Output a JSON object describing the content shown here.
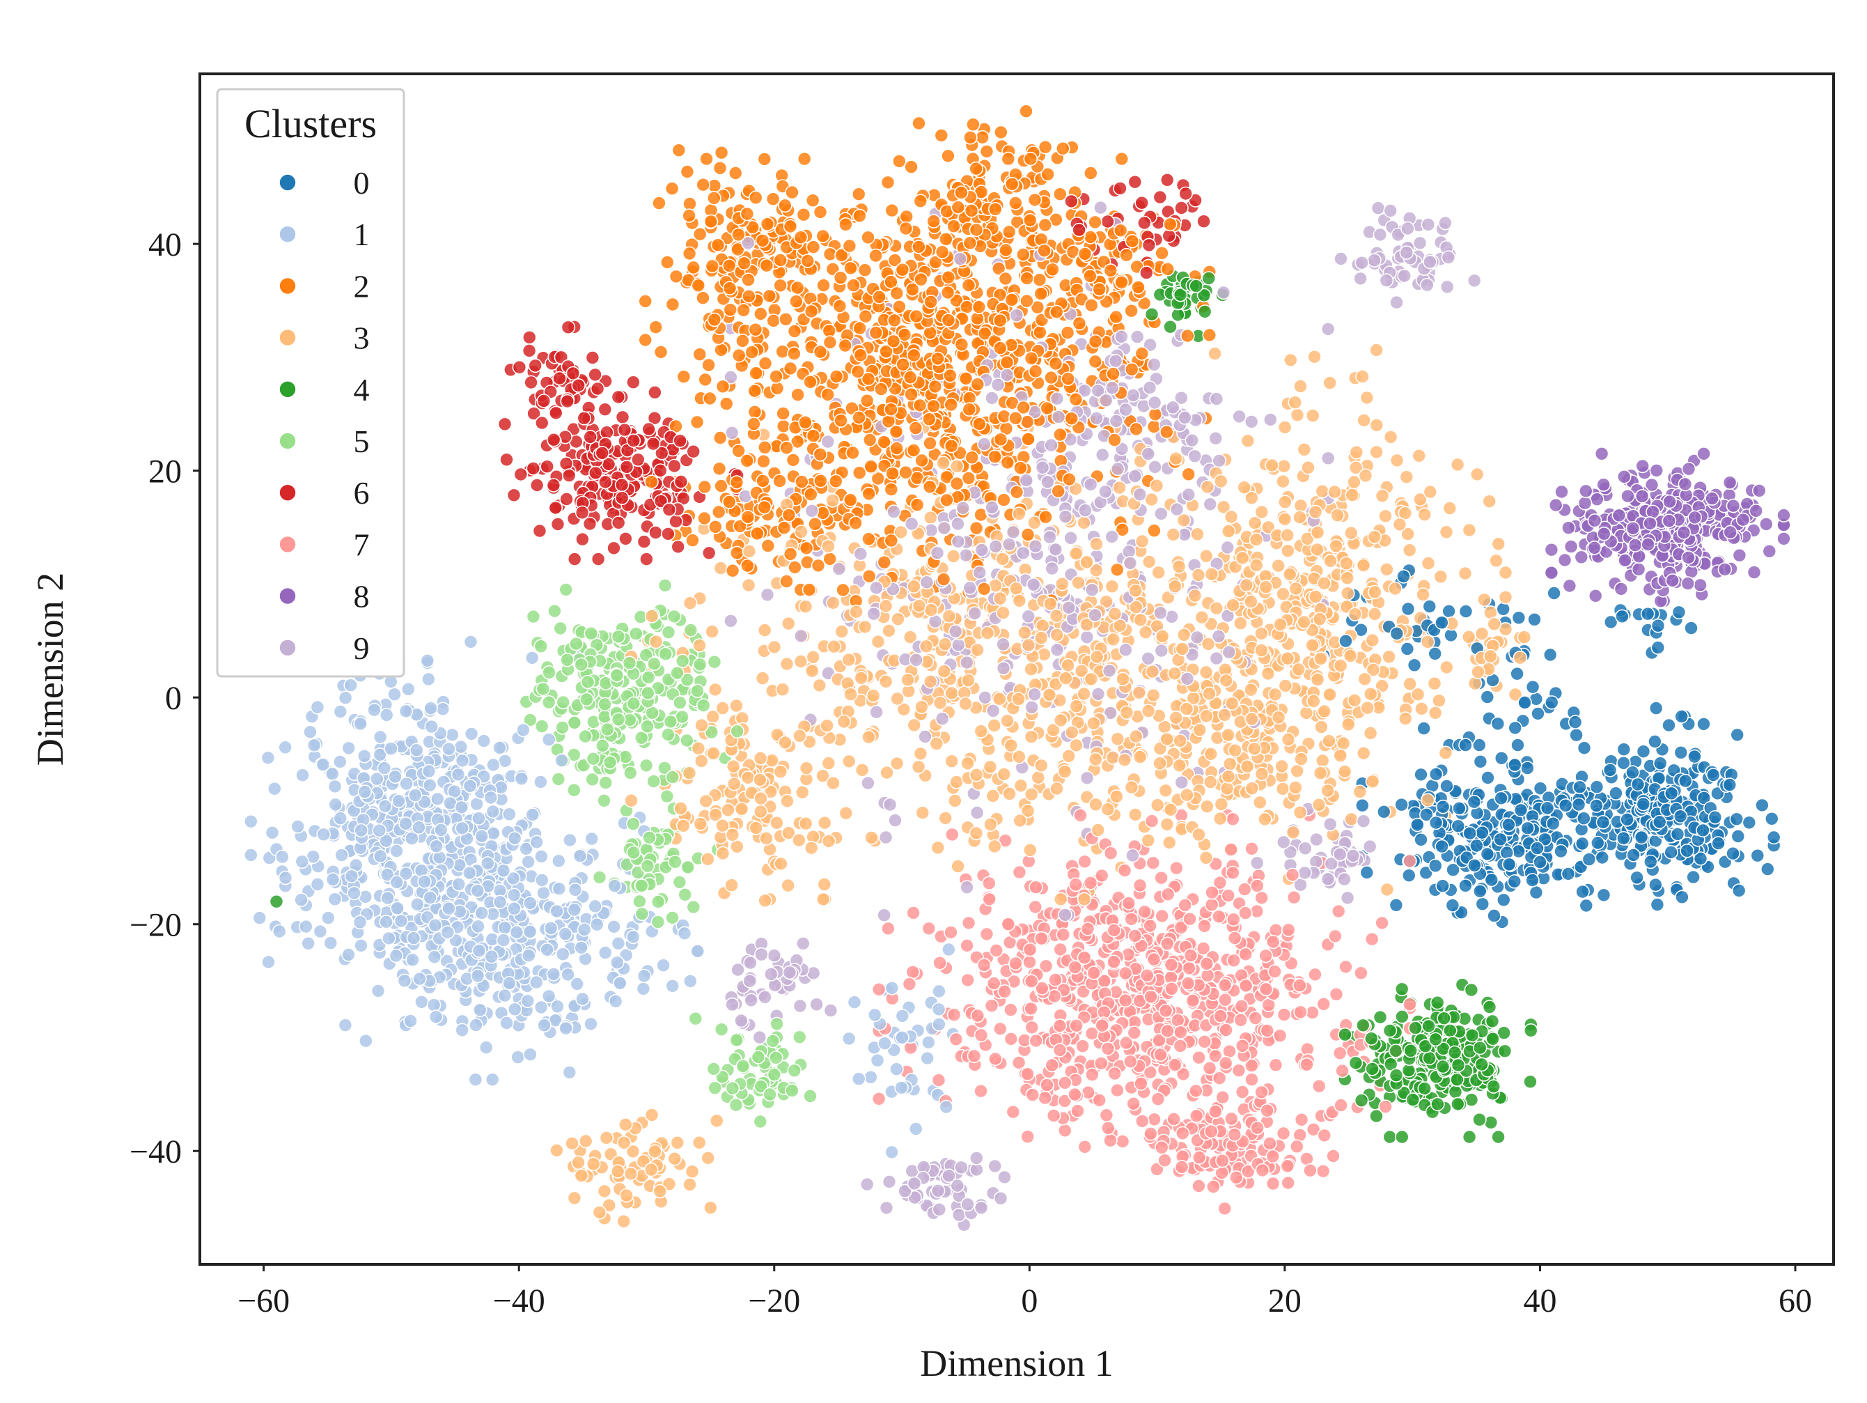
{
  "chart_data": {
    "type": "scatter",
    "title": "",
    "xlabel": "Dimension 1",
    "ylabel": "Dimension 2",
    "xlim": [
      -65,
      63
    ],
    "ylim": [
      -50,
      55
    ],
    "xticks": [
      -60,
      -40,
      -20,
      0,
      20,
      40,
      60
    ],
    "yticks": [
      -40,
      -20,
      0,
      20,
      40
    ],
    "xtick_labels": [
      "−60",
      "−40",
      "−20",
      "0",
      "20",
      "40",
      "60"
    ],
    "ytick_labels": [
      "−40",
      "−20",
      "0",
      "20",
      "40"
    ],
    "grid": false,
    "legend": {
      "title": "Clusters",
      "placement": "top-left",
      "labels": [
        "0",
        "1",
        "2",
        "3",
        "4",
        "5",
        "6",
        "7",
        "8",
        "9"
      ]
    },
    "marker_edge_color": "#ffffff",
    "colors": [
      "#1f77b4",
      "#aec7e8",
      "#ff7f0e",
      "#ffbb78",
      "#2ca02c",
      "#98df8a",
      "#d62728",
      "#ff9896",
      "#9467bd",
      "#c5b0d5"
    ],
    "series": [
      {
        "name": "0",
        "regions": [
          {
            "cx": 50,
            "cy": -10,
            "sx": 3.2,
            "sy": 3.2,
            "n": 240
          },
          {
            "cx": 37,
            "cy": -12,
            "sx": 4.2,
            "sy": 3.0,
            "n": 260
          },
          {
            "cx": 32,
            "cy": 6,
            "sx": 3.5,
            "sy": 2.0,
            "n": 40
          },
          {
            "cx": 40,
            "cy": -1,
            "sx": 3.5,
            "sy": 2.5,
            "n": 25
          },
          {
            "cx": 48,
            "cy": 7,
            "sx": 1.8,
            "sy": 1.0,
            "n": 15
          }
        ]
      },
      {
        "name": "1",
        "regions": [
          {
            "cx": -48,
            "cy": -12,
            "sx": 5.0,
            "sy": 6.5,
            "n": 560
          },
          {
            "cx": -39,
            "cy": -22,
            "sx": 5.0,
            "sy": 4.5,
            "n": 260
          },
          {
            "cx": -10,
            "cy": -31,
            "sx": 2.0,
            "sy": 3.5,
            "n": 40
          }
        ]
      },
      {
        "name": "2",
        "regions": [
          {
            "cx": -8,
            "cy": 28,
            "sx": 8.5,
            "sy": 7.5,
            "n": 780
          },
          {
            "cx": -4,
            "cy": 42,
            "sx": 4.0,
            "sy": 4.0,
            "n": 160
          },
          {
            "cx": -22,
            "cy": 39,
            "sx": 2.8,
            "sy": 4.0,
            "n": 150
          },
          {
            "cx": -20,
            "cy": 16,
            "sx": 3.5,
            "sy": 2.5,
            "n": 100
          },
          {
            "cx": 6,
            "cy": 37,
            "sx": 3.0,
            "sy": 3.5,
            "n": 90
          }
        ]
      },
      {
        "name": "3",
        "regions": [
          {
            "cx": 0,
            "cy": 3,
            "sx": 12.0,
            "sy": 8.0,
            "n": 720
          },
          {
            "cx": 23,
            "cy": 10,
            "sx": 5.5,
            "sy": 8.5,
            "n": 360
          },
          {
            "cx": 16,
            "cy": -3,
            "sx": 5.0,
            "sy": 5.0,
            "n": 150
          },
          {
            "cx": -22,
            "cy": -8,
            "sx": 3.0,
            "sy": 4.0,
            "n": 110
          },
          {
            "cx": -31,
            "cy": -41,
            "sx": 2.5,
            "sy": 2.0,
            "n": 70
          },
          {
            "cx": 36,
            "cy": 3,
            "sx": 1.5,
            "sy": 1.5,
            "n": 25
          }
        ]
      },
      {
        "name": "4",
        "regions": [
          {
            "cx": 32,
            "cy": -32,
            "sx": 2.8,
            "sy": 2.6,
            "n": 260
          },
          {
            "cx": 12,
            "cy": 35,
            "sx": 1.2,
            "sy": 1.2,
            "n": 35
          }
        ]
      },
      {
        "name": "5",
        "regions": [
          {
            "cx": -32,
            "cy": 0,
            "sx": 3.5,
            "sy": 3.8,
            "n": 250
          },
          {
            "cx": -29,
            "cy": -15,
            "sx": 1.8,
            "sy": 2.0,
            "n": 55
          },
          {
            "cx": -21,
            "cy": -33,
            "sx": 2.0,
            "sy": 2.0,
            "n": 60
          }
        ]
      },
      {
        "name": "6",
        "regions": [
          {
            "cx": -32,
            "cy": 20,
            "sx": 3.5,
            "sy": 3.0,
            "n": 220
          },
          {
            "cx": -36,
            "cy": 28,
            "sx": 1.8,
            "sy": 1.8,
            "n": 50
          },
          {
            "cx": 9,
            "cy": 42,
            "sx": 2.2,
            "sy": 1.8,
            "n": 40
          }
        ]
      },
      {
        "name": "7",
        "regions": [
          {
            "cx": 9,
            "cy": -26,
            "sx": 8.0,
            "sy": 6.0,
            "n": 760
          },
          {
            "cx": 16,
            "cy": -40,
            "sx": 3.0,
            "sy": 2.0,
            "n": 100
          }
        ]
      },
      {
        "name": "8",
        "regions": [
          {
            "cx": 50,
            "cy": 15,
            "sx": 3.5,
            "sy": 2.5,
            "n": 330
          }
        ]
      },
      {
        "name": "9",
        "regions": [
          {
            "cx": 0,
            "cy": 12,
            "sx": 9.0,
            "sy": 12.0,
            "n": 360
          },
          {
            "cx": 30,
            "cy": 39,
            "sx": 2.2,
            "sy": 1.6,
            "n": 60
          },
          {
            "cx": 7,
            "cy": 24,
            "sx": 4.0,
            "sy": 3.0,
            "n": 80
          },
          {
            "cx": -20,
            "cy": -25,
            "sx": 1.8,
            "sy": 2.0,
            "n": 45
          },
          {
            "cx": -7,
            "cy": -43,
            "sx": 2.2,
            "sy": 1.5,
            "n": 55
          },
          {
            "cx": 24,
            "cy": -14,
            "sx": 1.8,
            "sy": 1.6,
            "n": 45
          }
        ]
      }
    ],
    "outliers": [
      {
        "series": "4",
        "x": -59,
        "y": -18
      }
    ]
  }
}
